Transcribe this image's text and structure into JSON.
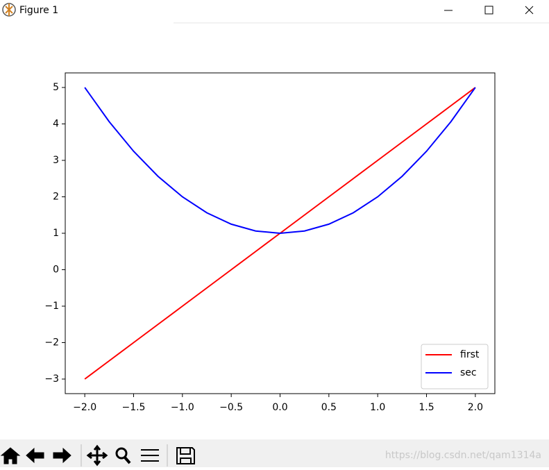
{
  "window": {
    "title": "Figure 1",
    "watermark": "https://blog.csdn.net/qam1314a"
  },
  "chart_data": {
    "type": "line",
    "x": [
      -2,
      -1.75,
      -1.5,
      -1.25,
      -1,
      -0.75,
      -0.5,
      -0.25,
      0,
      0.25,
      0.5,
      0.75,
      1,
      1.25,
      1.5,
      1.75,
      2
    ],
    "series": [
      {
        "name": "first",
        "color": "#ff0000",
        "values": [
          -3,
          -2.5,
          -2,
          -1.5,
          -1,
          -0.5,
          0,
          0.5,
          1,
          1.5,
          2,
          2.5,
          3,
          3.5,
          4,
          4.5,
          5
        ]
      },
      {
        "name": "sec",
        "color": "#0000ff",
        "values": [
          5,
          4.0625,
          3.25,
          2.5625,
          2,
          1.5625,
          1.25,
          1.0625,
          1,
          1.0625,
          1.25,
          1.5625,
          2,
          2.5625,
          3.25,
          4.0625,
          5
        ]
      }
    ],
    "xlim": [
      -2.2,
      2.2
    ],
    "ylim": [
      -3.4,
      5.4
    ],
    "xticks": [
      {
        "value": -2,
        "label": "−2.0"
      },
      {
        "value": -1.5,
        "label": "−1.5"
      },
      {
        "value": -1,
        "label": "−1.0"
      },
      {
        "value": -0.5,
        "label": "−0.5"
      },
      {
        "value": 0,
        "label": "0.0"
      },
      0.5,
      {
        "value": 1,
        "label": "1.0"
      },
      1.5,
      {
        "value": 2,
        "label": "2.0"
      }
    ],
    "yticks": [
      {
        "value": -3,
        "label": "−3"
      },
      {
        "value": -2,
        "label": "−2"
      },
      {
        "value": -1,
        "label": "−1"
      },
      0,
      1,
      2,
      3,
      4,
      5
    ],
    "legend": "lower right"
  }
}
